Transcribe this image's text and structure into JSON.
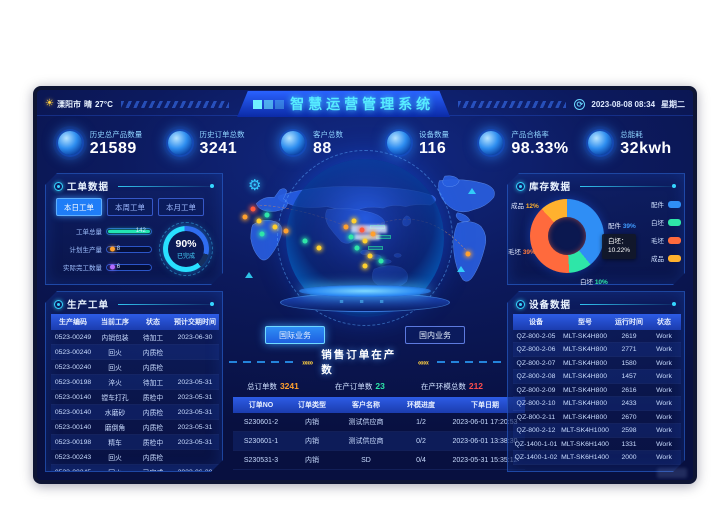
{
  "header": {
    "weather": {
      "city": "溧阳市",
      "condition": "晴",
      "temp": "27°C"
    },
    "title": "智慧运营管理系统",
    "date": "2023-08-08 08:34",
    "weekday": "星期二"
  },
  "kpis": [
    {
      "label": "历史总产品数量",
      "value": "21589"
    },
    {
      "label": "历史订单总数",
      "value": "3241"
    },
    {
      "label": "客户总数",
      "value": "88"
    },
    {
      "label": "设备数量",
      "value": "116"
    },
    {
      "label": "产品合格率",
      "value": "98.33%"
    },
    {
      "label": "总能耗",
      "value": "32kwh"
    }
  ],
  "work_order_panel": {
    "title": "工单数据",
    "tabs": [
      {
        "label": "本日工单",
        "active": true
      },
      {
        "label": "本周工单",
        "active": false
      },
      {
        "label": "本月工单",
        "active": false
      }
    ],
    "bars": [
      {
        "label": "工单总量",
        "value": "142",
        "pct": 95,
        "dot": false,
        "color": "#23e5b2"
      },
      {
        "label": "计划生产量",
        "value": "8",
        "pct": 4,
        "dot": true,
        "color": "#ffa02e"
      },
      {
        "label": "实际完工数量",
        "value": "6",
        "pct": 4,
        "dot": true,
        "color": "#b36bff"
      }
    ],
    "gauge": {
      "value": "90%",
      "label": "已完成"
    }
  },
  "production_panel": {
    "title": "生产工单",
    "columns": [
      "生产编码",
      "当前工序",
      "状态",
      "预计交期时间"
    ],
    "rows": [
      [
        "0523-00249",
        "内销包装",
        "待加工",
        "2023-06-30"
      ],
      [
        "0523-00240",
        "回火",
        "内质检",
        ""
      ],
      [
        "0523-00240",
        "回火",
        "内质检",
        ""
      ],
      [
        "0523-00198",
        "淬火",
        "待加工",
        "2023-05-31"
      ],
      [
        "0523-00140",
        "镗车打孔",
        "质检中",
        "2023-05-31"
      ],
      [
        "0523-00140",
        "水磨砂",
        "内质检",
        "2023-05-31"
      ],
      [
        "0523-00140",
        "磨倒角",
        "内质检",
        "2023-05-31"
      ],
      [
        "0523-00198",
        "精车",
        "质检中",
        "2023-05-31"
      ],
      [
        "0523-00243",
        "回火",
        "内质检",
        ""
      ],
      [
        "0523-00245",
        "回火",
        "已完成",
        "2023-06-30"
      ]
    ]
  },
  "map": {
    "buttons": [
      {
        "label": "国际业务",
        "active": true
      },
      {
        "label": "国内业务",
        "active": false
      }
    ],
    "markers": [
      {
        "x": 6,
        "y": 30,
        "color": "#ffa02e"
      },
      {
        "x": 9,
        "y": 25,
        "color": "#ff5a3c"
      },
      {
        "x": 11,
        "y": 33,
        "color": "#ffd02e"
      },
      {
        "x": 14,
        "y": 29,
        "color": "#2ee6a8"
      },
      {
        "x": 17,
        "y": 37,
        "color": "#ffd02e"
      },
      {
        "x": 12,
        "y": 42,
        "color": "#2ee6a8"
      },
      {
        "x": 21,
        "y": 40,
        "color": "#ffa02e"
      },
      {
        "x": 28,
        "y": 47,
        "color": "#2ee6a8"
      },
      {
        "x": 33,
        "y": 52,
        "color": "#ffd02e"
      },
      {
        "x": 43,
        "y": 37,
        "color": "#ffa02e"
      },
      {
        "x": 46,
        "y": 33,
        "color": "#ffd02e"
      },
      {
        "x": 49,
        "y": 39,
        "color": "#ff5a3c"
      },
      {
        "x": 45,
        "y": 44,
        "color": "#2ee6a8"
      },
      {
        "x": 50,
        "y": 47,
        "color": "#ffd02e"
      },
      {
        "x": 53,
        "y": 42,
        "color": "#ffa02e"
      },
      {
        "x": 47,
        "y": 52,
        "color": "#2ee6a8"
      },
      {
        "x": 52,
        "y": 57,
        "color": "#ffd02e"
      },
      {
        "x": 50,
        "y": 64,
        "color": "#ffd02e"
      },
      {
        "x": 56,
        "y": 61,
        "color": "#2ee6a8"
      },
      {
        "x": 88,
        "y": 56,
        "color": "#ffa02e"
      }
    ]
  },
  "sales_panel": {
    "title": "销售订单在产数",
    "stats": [
      {
        "label": "总订单数",
        "value": "3241",
        "color": "#ffa02e"
      },
      {
        "label": "在产订单数",
        "value": "23",
        "color": "#2ee6a8"
      },
      {
        "label": "在产环模总数",
        "value": "212",
        "color": "#ff4d4d"
      }
    ],
    "columns": [
      "订单NO",
      "订单类型",
      "客户名称",
      "环模进度",
      "下单日期"
    ],
    "rows": [
      [
        "S230601-2",
        "内销",
        "测试供应商",
        "1/2",
        "2023-06-01 17:20:53"
      ],
      [
        "S230601-1",
        "内销",
        "测试供应商",
        "0/2",
        "2023-06-01 13:38:30"
      ],
      [
        "S230531-3",
        "内销",
        "SD",
        "0/4",
        "2023-05-31 15:35:12"
      ]
    ]
  },
  "inventory_panel": {
    "title": "库存数据",
    "tooltip": {
      "line1": "白坯：",
      "line2": "10.22%"
    },
    "labels": [
      {
        "name": "成品",
        "value": "12%",
        "color": "#ffb12e"
      },
      {
        "name": "配件",
        "value": "39%",
        "color": "#3f9bff"
      },
      {
        "name": "白坯",
        "value": "10%",
        "color": "#2ee6a8"
      },
      {
        "name": "毛坯",
        "value": "39%",
        "color": "#ff7a3d"
      }
    ]
  },
  "chart_data": {
    "type": "pie",
    "donut": true,
    "title": "库存数据",
    "categories": [
      "配件",
      "白坯",
      "毛坯",
      "成品"
    ],
    "values": [
      39,
      10,
      39,
      12
    ],
    "unit": "%",
    "colors": [
      "#2f8ef5",
      "#2ee6a8",
      "#ff6a3d",
      "#ffb12e"
    ],
    "legend_position": "right",
    "tooltip": "白坯：10.22%"
  },
  "equipment_panel": {
    "title": "设备数据",
    "columns": [
      "设备",
      "型号",
      "运行时间",
      "状态"
    ],
    "rows": [
      [
        "QZ-800-2-05",
        "MLT-SK4H800",
        "2619",
        "Work"
      ],
      [
        "QZ-800-2-06",
        "MLT-SK4H800",
        "2771",
        "Work"
      ],
      [
        "QZ-800-2-07",
        "MLT-SK4H800",
        "1580",
        "Work"
      ],
      [
        "QZ-800-2-08",
        "MLT-SK4H800",
        "1457",
        "Work"
      ],
      [
        "QZ-800-2-09",
        "MLT-SK4H800",
        "2616",
        "Work"
      ],
      [
        "QZ-800-2-10",
        "MLT-SK4H800",
        "2433",
        "Work"
      ],
      [
        "QZ-800-2-11",
        "MLT-SK4H800",
        "2670",
        "Work"
      ],
      [
        "QZ-800-2-12",
        "MLT-SK4H1000",
        "2598",
        "Work"
      ],
      [
        "QZ-1400-1-01",
        "MLT-SK6H1400",
        "1331",
        "Work"
      ],
      [
        "QZ-1400-1-02",
        "MLT-SK6H1400",
        "2000",
        "Work"
      ]
    ]
  }
}
